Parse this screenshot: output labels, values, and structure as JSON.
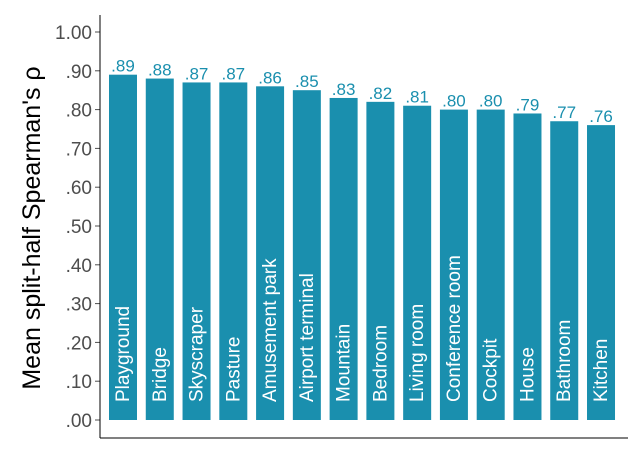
{
  "chart_data": {
    "type": "bar",
    "ylabel": "Mean split-half Spearman's  ρ",
    "xlabel": "",
    "ylim": [
      0,
      1.0
    ],
    "yticks": [
      0,
      0.1,
      0.2,
      0.3,
      0.4,
      0.5,
      0.6,
      0.7,
      0.8,
      0.9,
      1.0
    ],
    "ytick_labels": [
      ".00",
      ".10",
      ".20",
      ".30",
      ".40",
      ".50",
      ".60",
      ".70",
      ".80",
      ".90",
      "1.00"
    ],
    "categories": [
      "Playground",
      "Bridge",
      "Skyscraper",
      "Pasture",
      "Amusement park",
      "Airport terminal",
      "Mountain",
      "Bedroom",
      "Living room",
      "Conference room",
      "Cockpit",
      "House",
      "Bathroom",
      "Kitchen"
    ],
    "values": [
      0.89,
      0.88,
      0.87,
      0.87,
      0.86,
      0.85,
      0.83,
      0.82,
      0.81,
      0.8,
      0.8,
      0.79,
      0.77,
      0.76
    ],
    "value_labels": [
      ".89",
      ".88",
      ".87",
      ".87",
      ".86",
      ".85",
      ".83",
      ".82",
      ".81",
      ".80",
      ".80",
      ".79",
      ".77",
      ".76"
    ],
    "bar_color": "#1a8fae",
    "grid": false,
    "legend": "none"
  }
}
